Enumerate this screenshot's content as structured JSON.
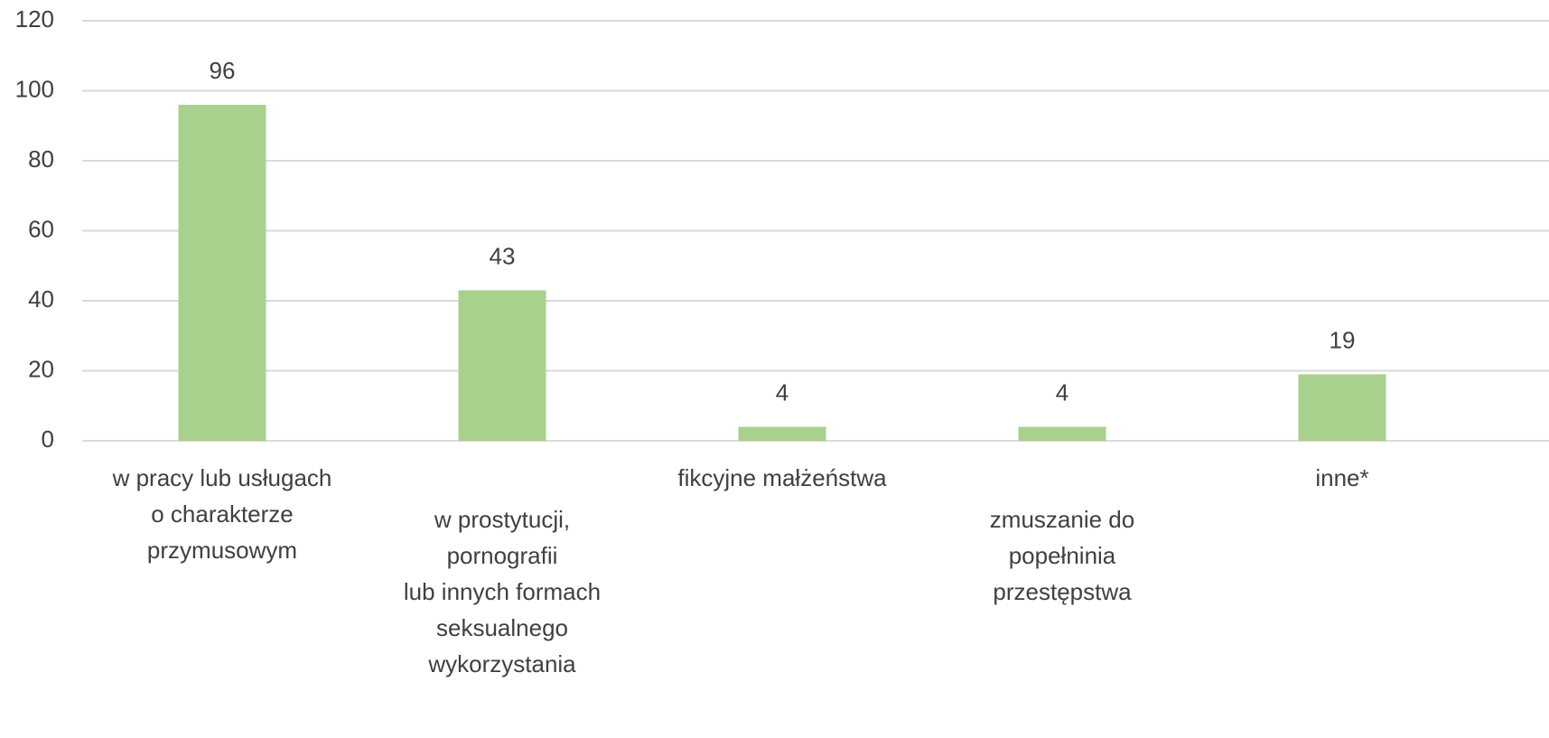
{
  "chart_data": {
    "type": "bar",
    "categories": [
      [
        "w pracy lub usługach",
        "o charakterze",
        "przymusowym"
      ],
      [
        "w prostytucji,",
        "pornografii",
        "lub innych formach",
        "seksualnego",
        "wykorzystania"
      ],
      [
        "fikcyjne małżeństwa"
      ],
      [
        "zmuszanie do",
        "popełninia",
        "przestępstwa"
      ],
      [
        "inne*"
      ]
    ],
    "values": [
      96,
      43,
      4,
      4,
      19
    ],
    "color": "#a9d18e",
    "ylim": [
      0,
      120
    ],
    "yticks": [
      0,
      20,
      40,
      60,
      80,
      100,
      120
    ],
    "grid": true
  }
}
